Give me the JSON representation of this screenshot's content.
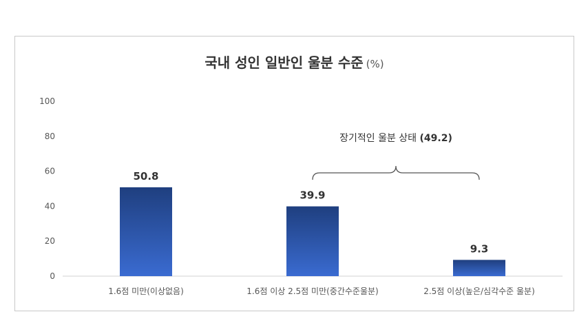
{
  "chart_data": {
    "type": "bar",
    "title": "국내 성인 일반인 울분 수준",
    "unit": "(%)",
    "categories": [
      "1.6점 미만(이상없음)",
      "1.6점 이상 2.5점 미만(중간수준울분)",
      "2.5점 이상(높은/심각수준 울분)"
    ],
    "values": [
      50.8,
      39.9,
      9.3
    ],
    "value_labels": [
      "50.8",
      "39.9",
      "9.3"
    ],
    "ylim": [
      0,
      100
    ],
    "yticks": [
      "0",
      "20",
      "40",
      "60",
      "80",
      "100"
    ],
    "ytick_values": [
      0,
      20,
      40,
      60,
      80,
      100
    ],
    "grid": false,
    "legend": "none",
    "bar_color_top": "#1f3f7f",
    "bar_color_bottom": "#3a6bd1",
    "annotation": {
      "label": "장기적인 울분 상태",
      "value": "(49.2)",
      "spans_categories": [
        1,
        2
      ]
    }
  }
}
